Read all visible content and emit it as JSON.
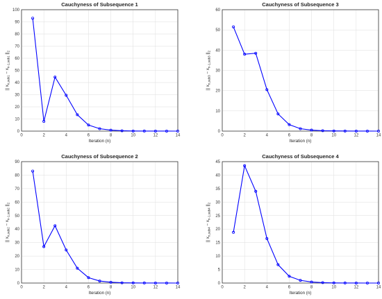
{
  "chart_data": [
    {
      "type": "line",
      "title": "Cauchyness of Subsequence 1",
      "xlabel": "Iteration (n)",
      "ylabel": "|| x_{n,sub1} − x_{n-1,sub1} ||_2",
      "xlim": [
        0,
        14
      ],
      "ylim": [
        0,
        100
      ],
      "xticks": [
        "0",
        "2",
        "4",
        "6",
        "8",
        "10",
        "12",
        "14"
      ],
      "yticks": [
        "0",
        "10",
        "20",
        "30",
        "40",
        "50",
        "60",
        "70",
        "80",
        "90",
        "100"
      ],
      "grid": true,
      "x": [
        1,
        2,
        3,
        4,
        5,
        6,
        7,
        8,
        9,
        10,
        11,
        12,
        13,
        14
      ],
      "y": [
        93,
        8,
        44.5,
        29.5,
        13.5,
        5,
        2,
        0.8,
        0.3,
        0.1,
        0.05,
        0.02,
        0.01,
        0
      ],
      "color": "#0000ff"
    },
    {
      "type": "line",
      "title": "Cauchyness of Subsequence 3",
      "xlabel": "Iteration (n)",
      "ylabel": "|| x_{n,sub3} − x_{n-1,sub3} ||_2",
      "xlim": [
        0,
        14
      ],
      "ylim": [
        0,
        60
      ],
      "xticks": [
        "0",
        "2",
        "4",
        "6",
        "8",
        "10",
        "12",
        "14"
      ],
      "yticks": [
        "0",
        "10",
        "20",
        "30",
        "40",
        "50",
        "60"
      ],
      "grid": true,
      "x": [
        1,
        2,
        3,
        4,
        5,
        6,
        7,
        8,
        9,
        10,
        11,
        12,
        13,
        14
      ],
      "y": [
        51.5,
        38,
        38.5,
        20.5,
        8.5,
        3.2,
        1.2,
        0.5,
        0.2,
        0.1,
        0.05,
        0.02,
        0.01,
        0
      ],
      "color": "#0000ff"
    },
    {
      "type": "line",
      "title": "Cauchyness of Subsequence 2",
      "xlabel": "Iteration (n)",
      "ylabel": "|| x_{n,sub2} − x_{n-1,sub2} ||_2",
      "xlim": [
        0,
        14
      ],
      "ylim": [
        0,
        90
      ],
      "xticks": [
        "0",
        "2",
        "4",
        "6",
        "8",
        "10",
        "12",
        "14"
      ],
      "yticks": [
        "0",
        "10",
        "20",
        "30",
        "40",
        "50",
        "60",
        "70",
        "80",
        "90"
      ],
      "grid": true,
      "x": [
        1,
        2,
        3,
        4,
        5,
        6,
        7,
        8,
        9,
        10,
        11,
        12,
        13,
        14
      ],
      "y": [
        83,
        27,
        42.5,
        24.5,
        11,
        4,
        1.5,
        0.6,
        0.2,
        0.1,
        0.05,
        0.02,
        0.01,
        0
      ],
      "color": "#0000ff"
    },
    {
      "type": "line",
      "title": "Cauchyness of Subsequence 4",
      "xlabel": "Iteration (n)",
      "ylabel": "|| x_{n,sub4} − x_{n-1,sub4} ||_2",
      "xlim": [
        0,
        14
      ],
      "ylim": [
        0,
        45
      ],
      "xticks": [
        "0",
        "2",
        "4",
        "6",
        "8",
        "10",
        "12",
        "14"
      ],
      "yticks": [
        "0",
        "5",
        "10",
        "15",
        "20",
        "25",
        "30",
        "35",
        "40",
        "45"
      ],
      "grid": true,
      "x": [
        1,
        2,
        3,
        4,
        5,
        6,
        7,
        8,
        9,
        10,
        11,
        12,
        13,
        14
      ],
      "y": [
        18.8,
        43.5,
        34,
        16.5,
        6.8,
        2.5,
        1,
        0.4,
        0.15,
        0.05,
        0.02,
        0.01,
        0,
        0
      ],
      "color": "#0000ff"
    }
  ]
}
